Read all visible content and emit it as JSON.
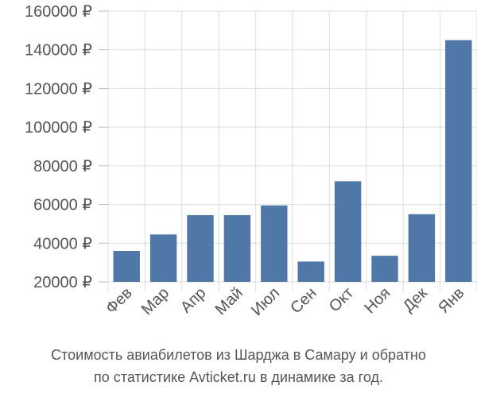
{
  "chart_data": {
    "type": "bar",
    "categories": [
      "Фев",
      "Мар",
      "Апр",
      "Май",
      "Июл",
      "Сен",
      "Окт",
      "Ноя",
      "Дек",
      "Янв"
    ],
    "values": [
      36000,
      44500,
      54500,
      54500,
      59500,
      30500,
      72000,
      33500,
      55000,
      145000
    ],
    "ylim": [
      20000,
      160000
    ],
    "y_ticks": [
      "20000 ₽",
      "40000 ₽",
      "60000 ₽",
      "80000 ₽",
      "100000 ₽",
      "120000 ₽",
      "140000 ₽",
      "160000 ₽"
    ],
    "y_tick_values": [
      20000,
      40000,
      60000,
      80000,
      100000,
      120000,
      140000,
      160000
    ],
    "bar_color": "#4f77a8",
    "grid": true,
    "title": "Стоимость авиабилетов из Шарджа в Самару и обратно",
    "subtitle": "по статистике Avticket.ru в динамике за год.",
    "xlabel": "",
    "ylabel": ""
  }
}
